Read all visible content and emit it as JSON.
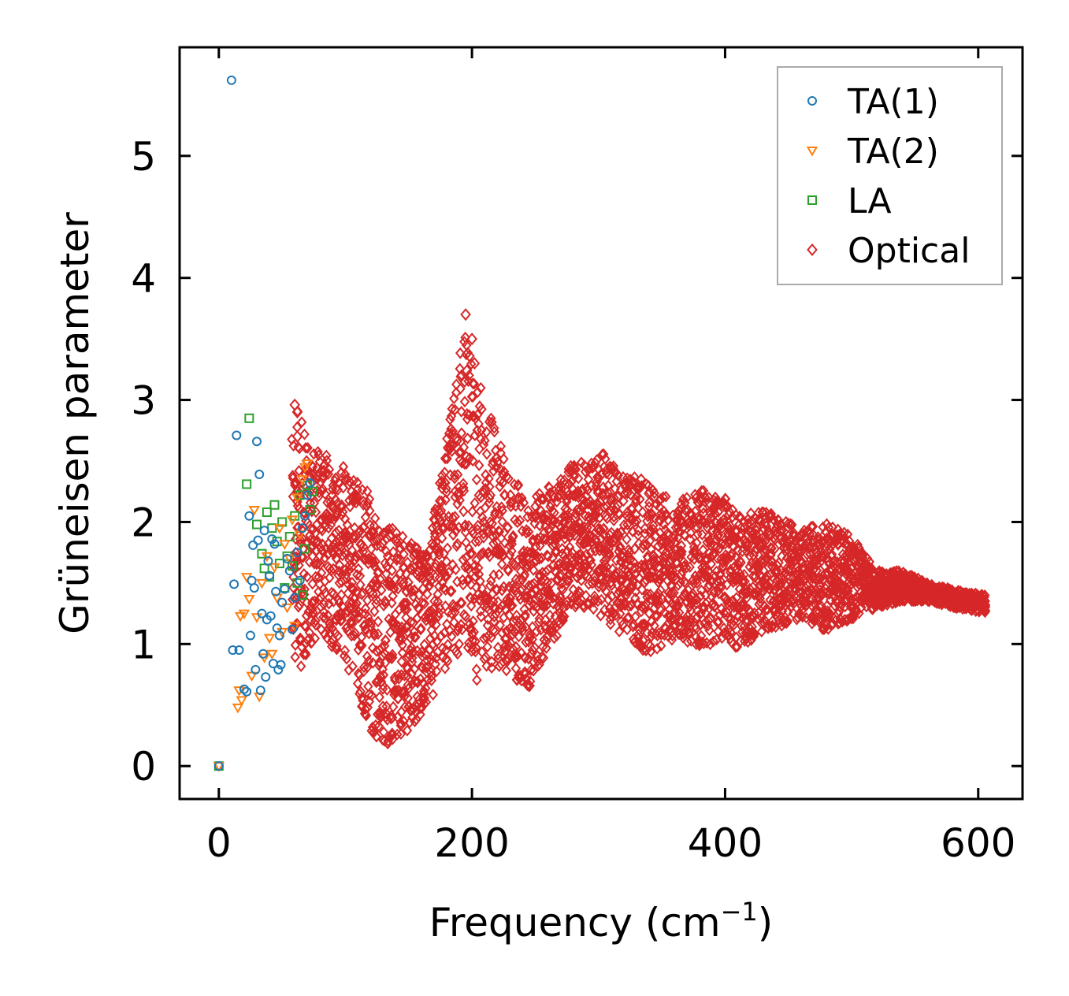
{
  "chart_data": {
    "type": "scatter",
    "title": "",
    "xlabel": "Frequency (cm",
    "xlabel_sup": "−1",
    "xlabel_close": ")",
    "ylabel": "Grüneisen parameter",
    "xlim": [
      -31,
      635
    ],
    "ylim": [
      -0.27,
      5.89
    ],
    "xticks": [
      0,
      200,
      400,
      600
    ],
    "yticks": [
      0,
      1,
      2,
      3,
      4,
      5
    ],
    "legend_position": "top-right",
    "series": [
      {
        "name": "TA(1)",
        "marker": "circle",
        "color": "#1f77b4",
        "x": [
          0,
          10,
          11,
          12,
          14,
          16,
          20,
          22,
          24,
          25,
          26,
          27,
          28,
          29,
          30,
          31,
          32,
          33,
          34,
          35,
          36,
          37,
          38,
          39,
          40,
          41,
          42,
          43,
          44,
          45,
          46,
          47,
          48,
          49,
          50,
          52,
          54,
          56,
          58,
          60,
          62,
          64,
          66,
          68,
          70,
          72
        ],
        "y": [
          0,
          5.62,
          0.95,
          1.49,
          2.71,
          0.95,
          0.63,
          0.61,
          2.05,
          1.07,
          1.52,
          1.81,
          1.46,
          0.79,
          2.66,
          1.85,
          2.39,
          0.62,
          1.25,
          0.92,
          1.93,
          0.73,
          1.2,
          1.68,
          1.56,
          1.23,
          1.86,
          0.84,
          1.82,
          1.43,
          1.13,
          0.79,
          1.07,
          0.83,
          1.34,
          1.45,
          1.7,
          1.6,
          1.12,
          1.38,
          1.75,
          1.52,
          1.95,
          2.05,
          2.22,
          2.32
        ]
      },
      {
        "name": "TA(2)",
        "marker": "triangle-down",
        "color": "#ff7f0e",
        "x": [
          0,
          15,
          16,
          17,
          18,
          20,
          22,
          24,
          26,
          28,
          30,
          32,
          34,
          36,
          38,
          40,
          42,
          44,
          46,
          48,
          50,
          52,
          54,
          56,
          58,
          60,
          62,
          64,
          66,
          68,
          70
        ],
        "y": [
          0,
          0.48,
          0.62,
          1.23,
          0.54,
          1.25,
          1.55,
          1.37,
          0.74,
          2.1,
          1.22,
          0.57,
          1.5,
          0.89,
          1.72,
          1.05,
          0.92,
          1.63,
          1.38,
          1.95,
          1.1,
          1.82,
          1.3,
          1.7,
          2.02,
          1.15,
          2.2,
          1.9,
          2.35,
          2.45,
          2.48
        ]
      },
      {
        "name": "LA",
        "marker": "square",
        "color": "#2ca02c",
        "x": [
          0,
          22,
          24,
          30,
          34,
          36,
          38,
          40,
          42,
          44,
          46,
          48,
          50,
          52,
          54,
          56,
          58,
          60,
          62,
          64,
          66,
          68,
          70,
          72,
          74
        ],
        "y": [
          0,
          2.31,
          2.85,
          1.98,
          1.74,
          1.62,
          2.08,
          1.55,
          1.95,
          2.14,
          1.84,
          1.66,
          2.0,
          1.46,
          1.72,
          1.88,
          1.64,
          2.05,
          1.5,
          2.22,
          1.4,
          1.78,
          2.3,
          2.1,
          2.25
        ]
      },
      {
        "name": "Optical",
        "marker": "diamond",
        "color": "#d62728",
        "x_range": [
          58,
          606
        ],
        "lower_envelope": [
          [
            60,
            0.7
          ],
          [
            80,
            1.1
          ],
          [
            100,
            0.85
          ],
          [
            115,
            0.4
          ],
          [
            125,
            0.2
          ],
          [
            135,
            0.18
          ],
          [
            150,
            0.28
          ],
          [
            165,
            0.5
          ],
          [
            180,
            0.8
          ],
          [
            195,
            1.0
          ],
          [
            200,
            0.65
          ],
          [
            215,
            0.8
          ],
          [
            230,
            0.75
          ],
          [
            245,
            0.6
          ],
          [
            260,
            0.95
          ],
          [
            280,
            1.3
          ],
          [
            300,
            1.25
          ],
          [
            320,
            1.05
          ],
          [
            340,
            0.9
          ],
          [
            360,
            1.05
          ],
          [
            380,
            0.95
          ],
          [
            400,
            1.05
          ],
          [
            410,
            0.95
          ],
          [
            430,
            1.1
          ],
          [
            460,
            1.2
          ],
          [
            480,
            1.1
          ],
          [
            500,
            1.2
          ],
          [
            520,
            1.3
          ],
          [
            540,
            1.35
          ],
          [
            560,
            1.35
          ],
          [
            580,
            1.3
          ],
          [
            606,
            1.25
          ]
        ],
        "upper_envelope": [
          [
            60,
            2.95
          ],
          [
            80,
            2.6
          ],
          [
            100,
            2.45
          ],
          [
            115,
            2.35
          ],
          [
            125,
            2.0
          ],
          [
            135,
            2.0
          ],
          [
            150,
            1.85
          ],
          [
            165,
            1.75
          ],
          [
            180,
            2.7
          ],
          [
            195,
            3.7
          ],
          [
            200,
            3.3
          ],
          [
            215,
            2.85
          ],
          [
            230,
            2.4
          ],
          [
            245,
            2.2
          ],
          [
            260,
            2.3
          ],
          [
            280,
            2.5
          ],
          [
            300,
            2.6
          ],
          [
            320,
            2.4
          ],
          [
            340,
            2.35
          ],
          [
            360,
            2.15
          ],
          [
            380,
            2.3
          ],
          [
            400,
            2.2
          ],
          [
            410,
            2.05
          ],
          [
            430,
            2.1
          ],
          [
            460,
            1.95
          ],
          [
            480,
            2.0
          ],
          [
            500,
            1.9
          ],
          [
            520,
            1.6
          ],
          [
            540,
            1.6
          ],
          [
            560,
            1.5
          ],
          [
            580,
            1.45
          ],
          [
            606,
            1.4
          ]
        ],
        "outliers": [
          [
            195,
            3.7
          ],
          [
            198,
            3.36
          ],
          [
            200,
            3.5
          ],
          [
            196,
            3.24
          ],
          [
            202,
            3.3
          ],
          [
            60,
            2.96
          ],
          [
            62,
            2.9
          ],
          [
            62,
            2.7
          ]
        ]
      }
    ]
  }
}
